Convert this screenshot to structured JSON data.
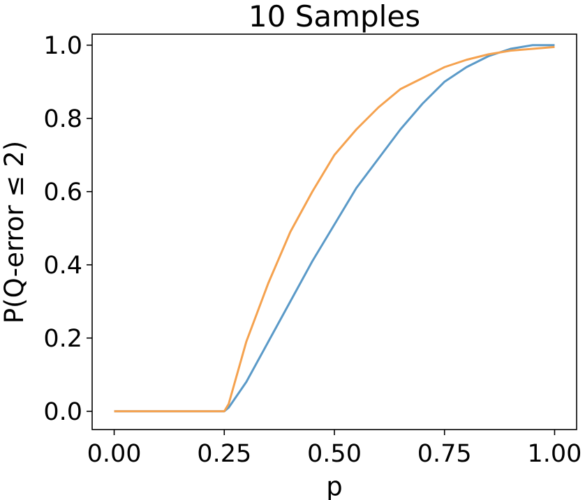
{
  "chart_data": {
    "type": "line",
    "title": "10 Samples",
    "xlabel": "p",
    "ylabel": "P(Q-error  ≤  2)",
    "xlim": [
      -0.05,
      1.05
    ],
    "ylim": [
      -0.05,
      1.03
    ],
    "x_ticks": [
      "0.00",
      "0.25",
      "0.50",
      "0.75",
      "1.00"
    ],
    "y_ticks": [
      "0.0",
      "0.2",
      "0.4",
      "0.6",
      "0.8",
      "1.0"
    ],
    "grid": false,
    "colors": {
      "blue": "#5b9ac8",
      "orange": "#f5a24f"
    },
    "series": [
      {
        "color": "#5b9ac8",
        "x": [
          0.0,
          0.25,
          0.26,
          0.3,
          0.35,
          0.4,
          0.45,
          0.5,
          0.55,
          0.6,
          0.65,
          0.7,
          0.75,
          0.8,
          0.85,
          0.9,
          0.95,
          1.0
        ],
        "y": [
          0.0,
          0.0,
          0.01,
          0.08,
          0.19,
          0.3,
          0.41,
          0.51,
          0.61,
          0.69,
          0.77,
          0.84,
          0.9,
          0.94,
          0.97,
          0.99,
          1.0,
          1.0
        ]
      },
      {
        "color": "#f5a24f",
        "x": [
          0.0,
          0.25,
          0.26,
          0.3,
          0.35,
          0.4,
          0.45,
          0.5,
          0.55,
          0.6,
          0.65,
          0.7,
          0.75,
          0.8,
          0.85,
          0.9,
          0.95,
          1.0
        ],
        "y": [
          0.0,
          0.0,
          0.02,
          0.19,
          0.35,
          0.49,
          0.6,
          0.7,
          0.77,
          0.83,
          0.88,
          0.91,
          0.94,
          0.96,
          0.975,
          0.985,
          0.99,
          0.995
        ]
      }
    ]
  }
}
